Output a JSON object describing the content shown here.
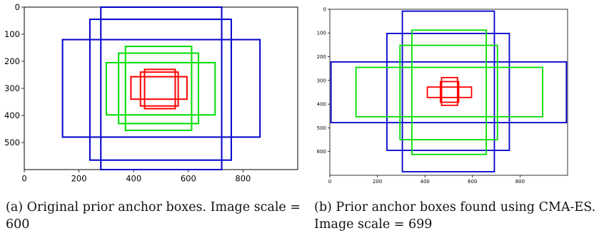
{
  "figure": {
    "panels": [
      {
        "caption": "(a) Original prior anchor boxes. Image scale = 600",
        "chart_data": {
          "type": "anchor-box-plot",
          "xlim": [
            0,
            1000
          ],
          "ylim": [
            600,
            0
          ],
          "xticks": [
            0,
            200,
            400,
            600,
            800
          ],
          "yticks": [
            0,
            100,
            200,
            300,
            400,
            500
          ],
          "boxes": [
            {
              "color": "#0000cc",
              "group": "large",
              "x": [
                280,
                722
              ],
              "y": [
                0,
                607
              ]
            },
            {
              "color": "#0000cc",
              "group": "large",
              "x": [
                240,
                757
              ],
              "y": [
                45,
                565
              ]
            },
            {
              "color": "#0000cc",
              "group": "large",
              "x": [
                140,
                862
              ],
              "y": [
                120,
                480
              ]
            },
            {
              "color": "#00dd00",
              "group": "medium",
              "x": [
                370,
                612
              ],
              "y": [
                145,
                455
              ]
            },
            {
              "color": "#00dd00",
              "group": "medium",
              "x": [
                345,
                637
              ],
              "y": [
                170,
                430
              ]
            },
            {
              "color": "#00dd00",
              "group": "medium",
              "x": [
                300,
                698
              ],
              "y": [
                205,
                398
              ]
            },
            {
              "color": "#ff0000",
              "group": "small",
              "x": [
                440,
                552
              ],
              "y": [
                230,
                375
              ]
            },
            {
              "color": "#ff0000",
              "group": "small",
              "x": [
                425,
                563
              ],
              "y": [
                240,
                365
              ]
            },
            {
              "color": "#ff0000",
              "group": "small",
              "x": [
                390,
                595
              ],
              "y": [
                257,
                340
              ]
            }
          ]
        }
      },
      {
        "caption": "(b) Prior anchor boxes found using CMA-ES. Image scale = 699",
        "chart_data": {
          "type": "anchor-box-plot",
          "xlim": [
            0,
            1000
          ],
          "ylim": [
            700,
            0
          ],
          "xticks": [
            0,
            200,
            400,
            600,
            800
          ],
          "yticks": [
            0,
            100,
            200,
            300,
            400,
            500,
            600
          ],
          "boxes": [
            {
              "color": "#0000cc",
              "group": "large",
              "x": [
                305,
                692
              ],
              "y": [
                8,
                685
              ]
            },
            {
              "color": "#0000cc",
              "group": "large",
              "x": [
                240,
                755
              ],
              "y": [
                102,
                595
              ]
            },
            {
              "color": "#0000cc",
              "group": "large",
              "x": [
                5,
                995
              ],
              "y": [
                222,
                478
              ]
            },
            {
              "color": "#00dd00",
              "group": "medium",
              "x": [
                345,
                658
              ],
              "y": [
                88,
                612
              ]
            },
            {
              "color": "#00dd00",
              "group": "medium",
              "x": [
                295,
                705
              ],
              "y": [
                152,
                550
              ]
            },
            {
              "color": "#00dd00",
              "group": "medium",
              "x": [
                110,
                895
              ],
              "y": [
                245,
                453
              ]
            },
            {
              "color": "#ff0000",
              "group": "small",
              "x": [
                470,
                537
              ],
              "y": [
                288,
                405
              ]
            },
            {
              "color": "#ff0000",
              "group": "small",
              "x": [
                465,
                542
              ],
              "y": [
                305,
                392
              ]
            },
            {
              "color": "#ff0000",
              "group": "small",
              "x": [
                410,
                596
              ],
              "y": [
                328,
                372
              ]
            }
          ]
        }
      }
    ]
  }
}
